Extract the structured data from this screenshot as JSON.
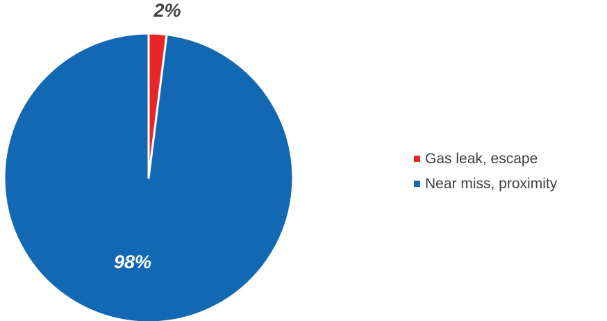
{
  "chart_data": {
    "type": "pie",
    "title": "",
    "slices": [
      {
        "label": "Gas leak, escape",
        "value": 2,
        "value_label": "2%",
        "color": "#e8262a",
        "label_color": "#404040"
      },
      {
        "label": "Near miss, proximity",
        "value": 98,
        "value_label": "98%",
        "color": "#1268b3",
        "label_color": "#ffffff"
      }
    ],
    "start_angle_deg": 0,
    "direction": "clockwise",
    "legend_position": "right"
  }
}
